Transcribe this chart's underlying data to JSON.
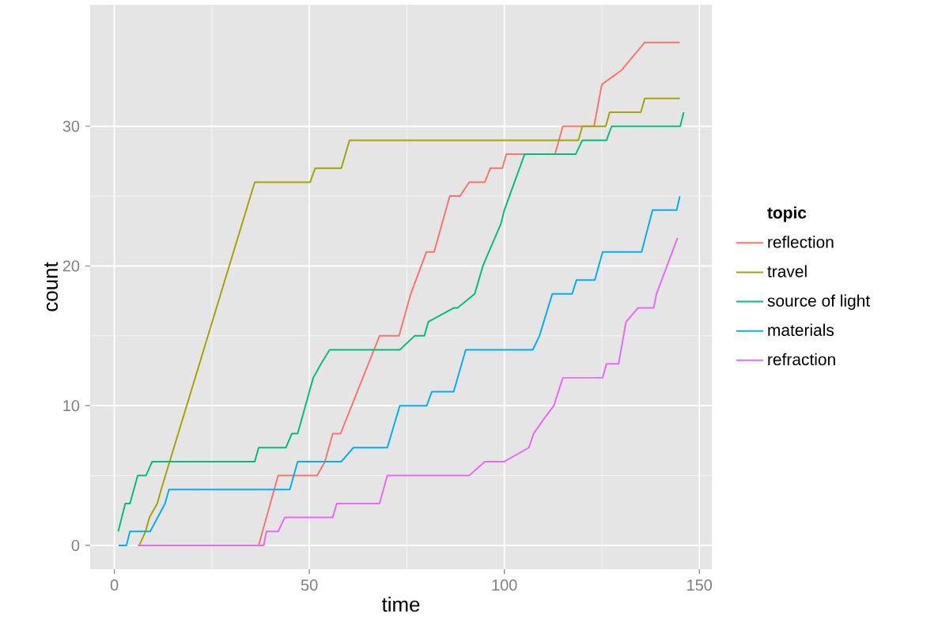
{
  "chart_data": {
    "type": "line",
    "xlabel": "time",
    "ylabel": "count",
    "legend_title": "topic",
    "xlim": [
      -6.2,
      153.2
    ],
    "ylim": [
      -1.7,
      38.7
    ],
    "xticks": [
      0,
      50,
      100,
      150
    ],
    "yticks": [
      0,
      10,
      20,
      30
    ],
    "grid": true,
    "legend": "right",
    "series": [
      {
        "name": "reflection",
        "color": "#F8766D",
        "x": [
          37,
          38,
          42,
          52,
          54,
          55,
          56,
          58,
          68,
          73,
          76,
          80,
          82,
          86,
          88.6,
          91,
          95,
          96.4,
          99.5,
          100.5,
          113,
          115,
          123,
          125,
          130,
          133,
          136,
          145
        ],
        "values": [
          0,
          1,
          5,
          5,
          6,
          7,
          8,
          8,
          15,
          15,
          18,
          21,
          21,
          25,
          25,
          26,
          26,
          27,
          27,
          28,
          28,
          30,
          30,
          33,
          34,
          35,
          36,
          36
        ]
      },
      {
        "name": "travel",
        "color": "#A3A500",
        "x": [
          6.4,
          8,
          9,
          11,
          12,
          36,
          50.2,
          51.5,
          58.2,
          60.3,
          119,
          120,
          126,
          127,
          135,
          136,
          145
        ],
        "values": [
          0,
          1,
          2,
          3,
          4,
          26,
          26,
          27,
          27,
          29,
          29,
          30,
          30,
          31,
          31,
          32,
          32
        ]
      },
      {
        "name": "source of light",
        "color": "#00BF7D",
        "x": [
          1,
          2.8,
          4,
          6,
          8.1,
          9.7,
          36,
          37,
          44,
          45.5,
          47,
          50,
          51,
          53,
          55.2,
          73.2,
          77,
          79.5,
          80.5,
          87,
          88,
          92.4,
          94.5,
          96,
          99.1,
          100,
          105.2,
          118.3,
          120,
          126.2,
          127.5,
          145.1,
          146
        ],
        "values": [
          1,
          3,
          3,
          5,
          5,
          6,
          6,
          7,
          7,
          8,
          8,
          11,
          12,
          13,
          14,
          14,
          15,
          15,
          16,
          17,
          17,
          18,
          20,
          21,
          23,
          24,
          28,
          28,
          29,
          29,
          30,
          30,
          31
        ]
      },
      {
        "name": "materials",
        "color": "#00B0F6",
        "x": [
          1.1,
          3.1,
          4,
          9.2,
          13,
          14,
          45,
          47,
          58.2,
          61.3,
          70,
          73.2,
          80.1,
          81.4,
          87,
          90.1,
          107.3,
          109,
          112.3,
          117.4,
          118.5,
          123.2,
          125.2,
          135.2,
          138,
          144.2,
          145
        ],
        "values": [
          0,
          0,
          1,
          1,
          3,
          4,
          4,
          6,
          6,
          7,
          7,
          10,
          10,
          11,
          11,
          14,
          14,
          15,
          18,
          18,
          19,
          19,
          21,
          21,
          24,
          24,
          25
        ]
      },
      {
        "name": "refraction",
        "color": "#E76BF3",
        "x": [
          6,
          38.3,
          39,
          42,
          43.7,
          56,
          57,
          68,
          70,
          91,
          95,
          100,
          106.3,
          107.5,
          110,
          112.7,
          115,
          125.2,
          126.2,
          129.3,
          131.2,
          134.3,
          138.3,
          139,
          144.4
        ],
        "values": [
          0,
          0,
          1,
          1,
          2,
          2,
          3,
          3,
          5,
          5,
          6,
          6,
          7,
          8,
          9,
          10,
          12,
          12,
          13,
          13,
          16,
          17,
          17,
          18,
          22
        ]
      }
    ]
  }
}
